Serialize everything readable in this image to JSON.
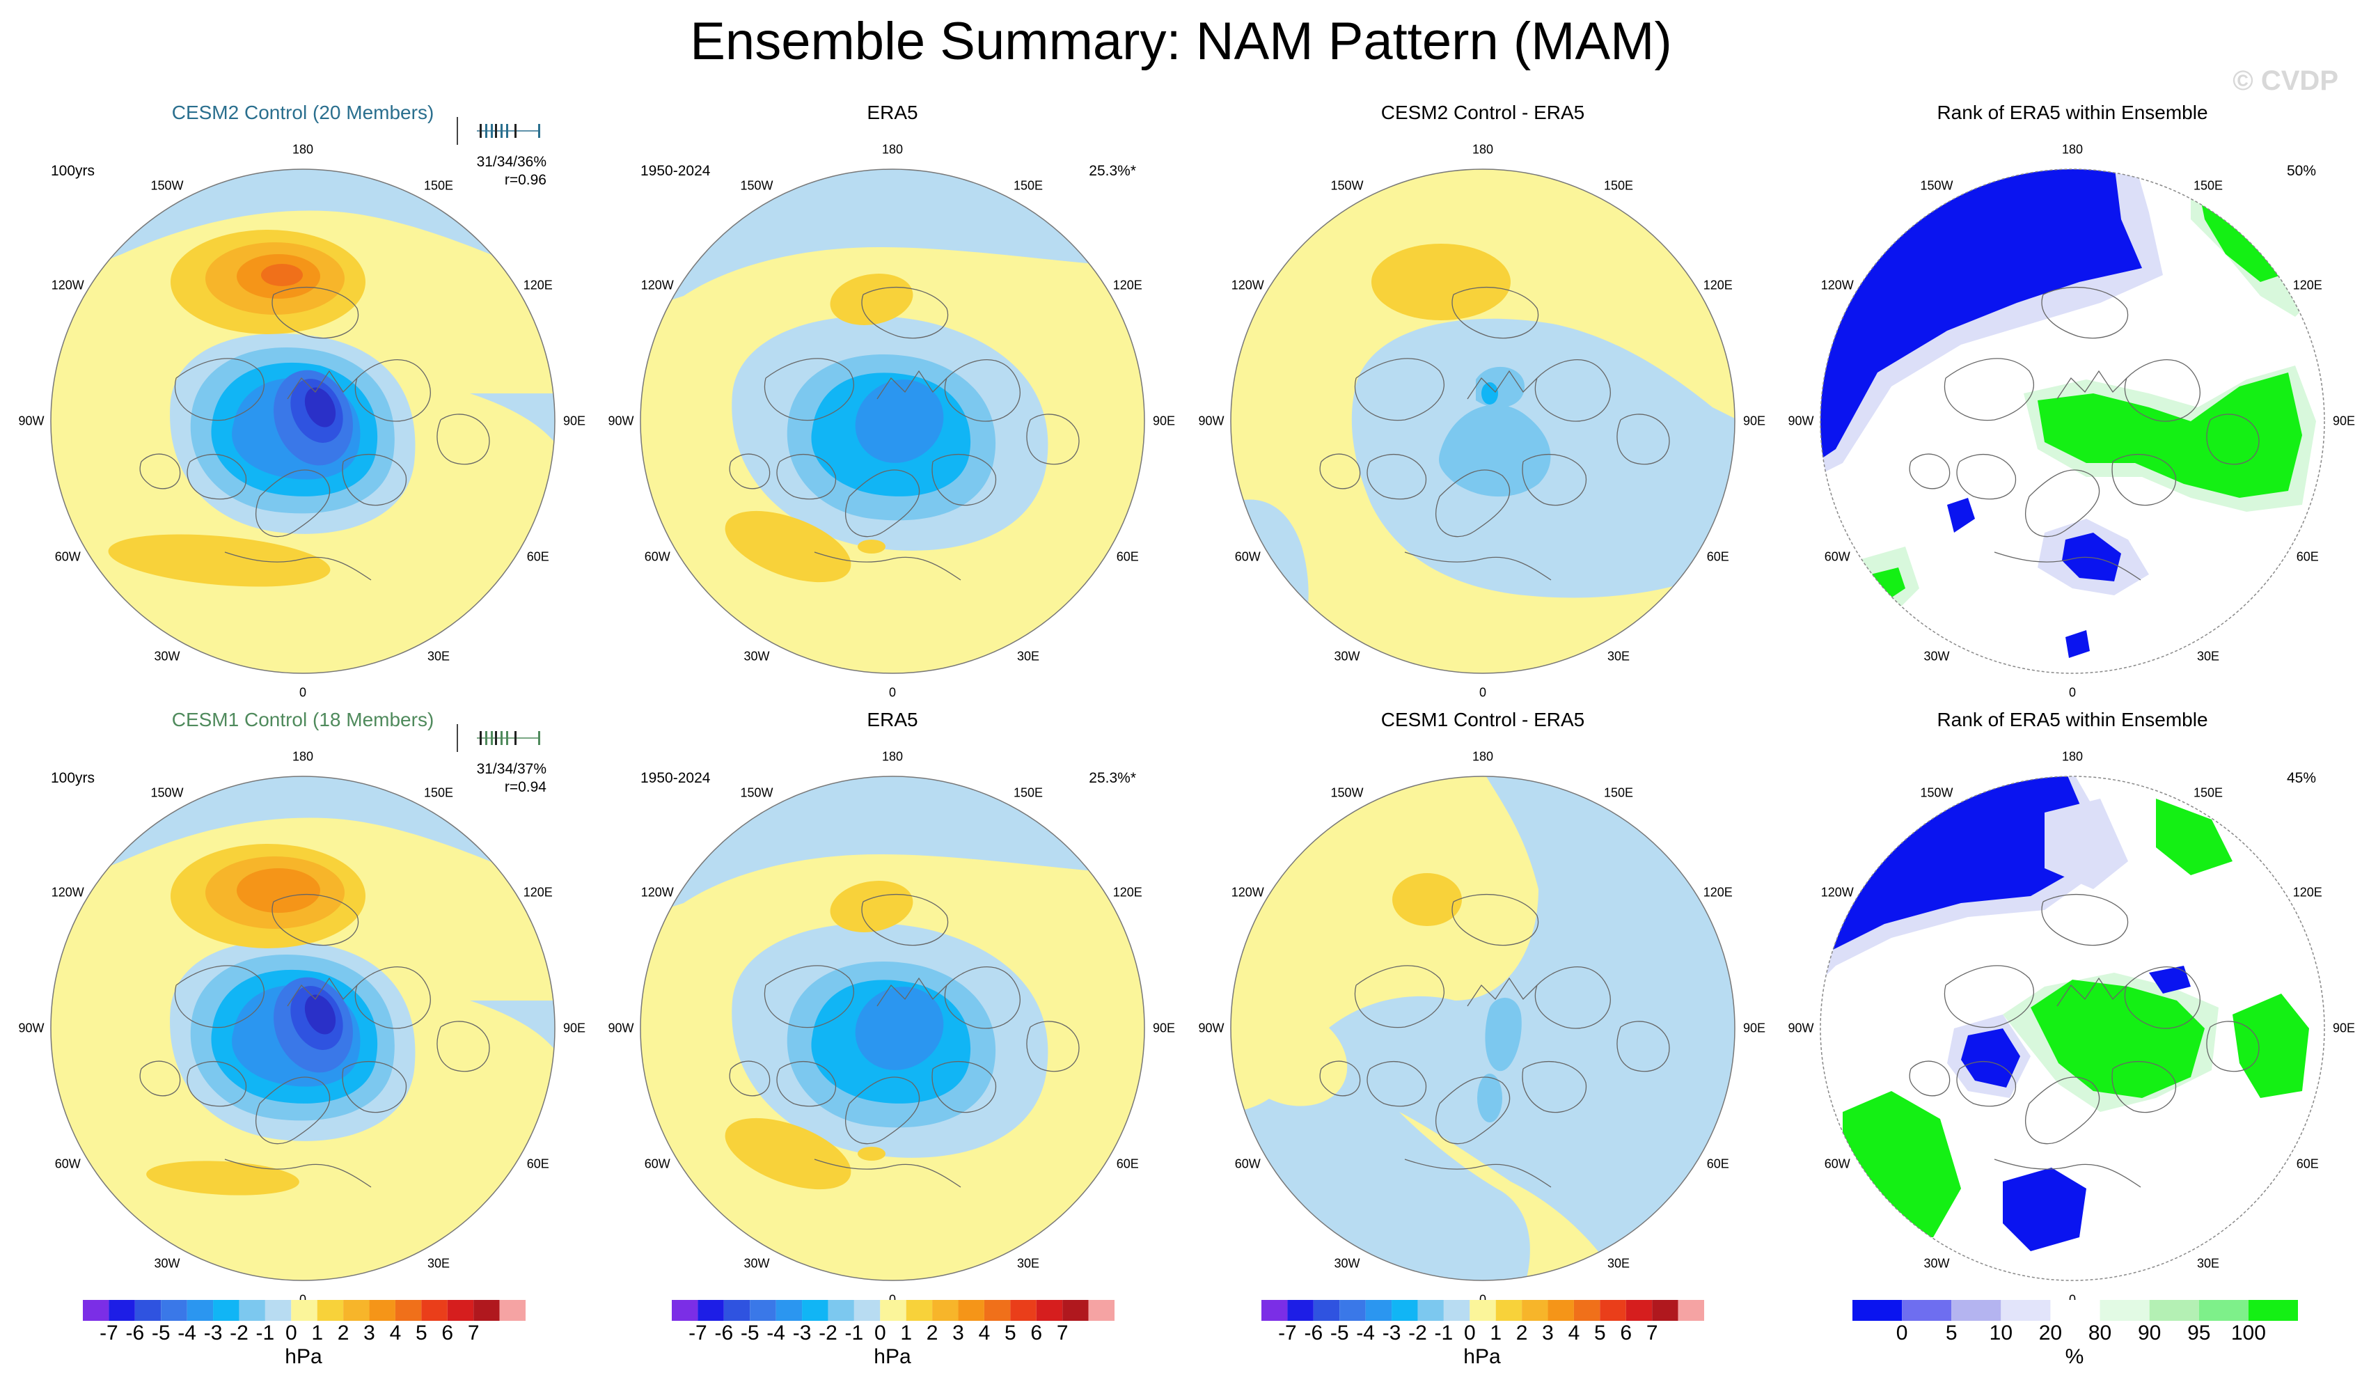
{
  "title": "Ensemble Summary: NAM Pattern (MAM)",
  "watermark": "© CVDP",
  "longitude_labels": [
    "180",
    "150E",
    "120E",
    "90E",
    "60E",
    "30E",
    "0",
    "30W",
    "60W",
    "90W",
    "120W",
    "150W"
  ],
  "rows": [
    {
      "panels": [
        {
          "title": "CESM2 Control (20 Members)",
          "left_note": "100yrs",
          "right_note_1": "31/34/36%",
          "right_note_2": "r=0.96",
          "kind": "model"
        },
        {
          "title": "ERA5",
          "left_note": "1950-2024",
          "right_note_1": "25.3%*",
          "right_note_2": "",
          "kind": "obs"
        },
        {
          "title": "CESM2 Control - ERA5",
          "left_note": "",
          "right_note_1": "",
          "right_note_2": "",
          "kind": "diff"
        },
        {
          "title": "Rank of ERA5 within Ensemble",
          "left_note": "",
          "right_note_1": "50%",
          "right_note_2": "",
          "kind": "rank"
        }
      ]
    },
    {
      "panels": [
        {
          "title": "CESM1 Control (18 Members)",
          "left_note": "100yrs",
          "right_note_1": "31/34/37%",
          "right_note_2": "r=0.94",
          "kind": "model"
        },
        {
          "title": "ERA5",
          "left_note": "1950-2024",
          "right_note_1": "25.3%*",
          "right_note_2": "",
          "kind": "obs"
        },
        {
          "title": "CESM1 Control - ERA5",
          "left_note": "",
          "right_note_1": "",
          "right_note_2": "",
          "kind": "diff"
        },
        {
          "title": "Rank of ERA5 within Ensemble",
          "left_note": "",
          "right_note_1": "45%",
          "right_note_2": "",
          "kind": "rank"
        }
      ]
    }
  ],
  "colorbar_hpa": {
    "unit": "hPa",
    "tick_labels": [
      "-7",
      "-6",
      "-5",
      "-4",
      "-3",
      "-2",
      "-1",
      "0",
      "1",
      "2",
      "3",
      "4",
      "5",
      "6",
      "7"
    ],
    "colors": [
      "#7b2ee6",
      "#1d1ee6",
      "#2f53e0",
      "#3a78e8",
      "#2b96f0",
      "#11b5f5",
      "#7cc8ef",
      "#b8dcf2",
      "#fbf59a",
      "#f8d23a",
      "#f7b52a",
      "#f59518",
      "#f0701a",
      "#ea3e1a",
      "#d61e1e",
      "#b0181e",
      "#f5a3a3"
    ]
  },
  "colorbar_rank": {
    "unit": "%",
    "tick_labels": [
      "0",
      "5",
      "10",
      "20",
      "80",
      "90",
      "95",
      "100"
    ],
    "colors": [
      "#0a14f0",
      "#6e6ef0",
      "#b4b4f0",
      "#e2e4fa",
      "#ffffff",
      "#e2fae4",
      "#b4f0b4",
      "#7ef08a",
      "#14f014"
    ]
  },
  "fill_colors": {
    "light_blue": "#b8dcf2",
    "blue1": "#7cc8ef",
    "blue2": "#11b5f5",
    "blue3": "#2b96f0",
    "blue4": "#3a78e8",
    "blue5": "#2f53e0",
    "yellow": "#fbf59a",
    "orange1": "#f8d23a",
    "orange2": "#f7b52a",
    "orange3": "#f59518",
    "red1": "#f0701a",
    "rank_blue": "#0a14f0",
    "rank_green": "#14f014",
    "rank_light_blue": "#dcdff8",
    "rank_light_green": "#d8f8dc"
  }
}
